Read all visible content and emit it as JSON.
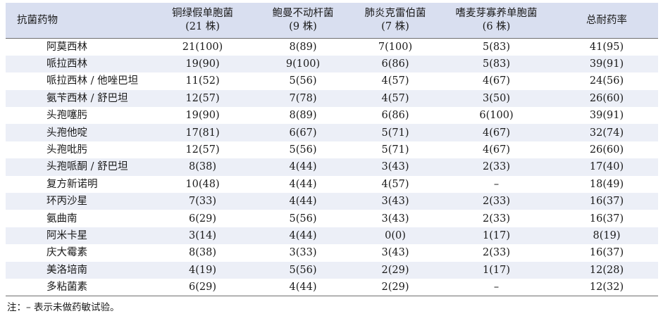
{
  "table": {
    "header": {
      "drug": "抗菌药物",
      "columns": [
        {
          "name": "铜绿假单胞菌",
          "count": "(21 株)"
        },
        {
          "name": "鲍曼不动杆菌",
          "count": "(9 株)"
        },
        {
          "name": "肺炎克雷伯菌",
          "count": "(7 株)"
        },
        {
          "name": "嗜麦芽寡养单胞菌",
          "count": "(6 株)"
        }
      ],
      "total": "总耐药率"
    },
    "rows": [
      {
        "drug": "阿莫西林",
        "values": [
          "21(100)",
          "8(89)",
          "7(100)",
          "5(83)",
          "41(95)"
        ]
      },
      {
        "drug": "哌拉西林",
        "values": [
          "19(90)",
          "9(100)",
          "6(86)",
          "5(83)",
          "39(91)"
        ]
      },
      {
        "drug": "哌拉西林 / 他唑巴坦",
        "values": [
          "11(52)",
          "5(56)",
          "4(57)",
          "4(67)",
          "24(56)"
        ]
      },
      {
        "drug": "氨苄西林 / 舒巴坦",
        "values": [
          "12(57)",
          "7(78)",
          "4(57)",
          "3(50)",
          "26(60)"
        ]
      },
      {
        "drug": "头孢噻肟",
        "values": [
          "19(90)",
          "8(89)",
          "6(86)",
          "6(100)",
          "39(91)"
        ]
      },
      {
        "drug": "头孢他啶",
        "values": [
          "17(81)",
          "6(67)",
          "5(71)",
          "4(67)",
          "32(74)"
        ]
      },
      {
        "drug": "头孢吡肟",
        "values": [
          "12(57)",
          "5(56)",
          "5(71)",
          "4(67)",
          "26(60)"
        ]
      },
      {
        "drug": "头孢哌酮 / 舒巴坦",
        "values": [
          "8(38)",
          "4(44)",
          "3(43)",
          "2(33)",
          "17(40)"
        ]
      },
      {
        "drug": "复方新诺明",
        "values": [
          "10(48)",
          "4(44)",
          "4(57)",
          "–",
          "18(49)"
        ]
      },
      {
        "drug": "环丙沙星",
        "values": [
          "7(33)",
          "4(44)",
          "3(43)",
          "2(33)",
          "16(37)"
        ]
      },
      {
        "drug": "氨曲南",
        "values": [
          "6(29)",
          "5(56)",
          "3(43)",
          "2(33)",
          "16(37)"
        ]
      },
      {
        "drug": "阿米卡星",
        "values": [
          "3(14)",
          "4(44)",
          "0(0)",
          "1(17)",
          "8(19)"
        ]
      },
      {
        "drug": "庆大霉素",
        "values": [
          "8(38)",
          "3(33)",
          "3(43)",
          "2(33)",
          "16(37)"
        ]
      },
      {
        "drug": "美洛培南",
        "values": [
          "4(19)",
          "5(56)",
          "2(29)",
          "1(17)",
          "12(28)"
        ]
      },
      {
        "drug": "多粘菌素",
        "values": [
          "6(29)",
          "4(44)",
          "2(29)",
          "–",
          "12(32)"
        ]
      }
    ]
  },
  "note": "注：– 表示未做药敏试验。",
  "colors": {
    "header_bg": "#d9dff0",
    "stripe_bg": "#eceff7",
    "rule": "#6f6f6f"
  }
}
